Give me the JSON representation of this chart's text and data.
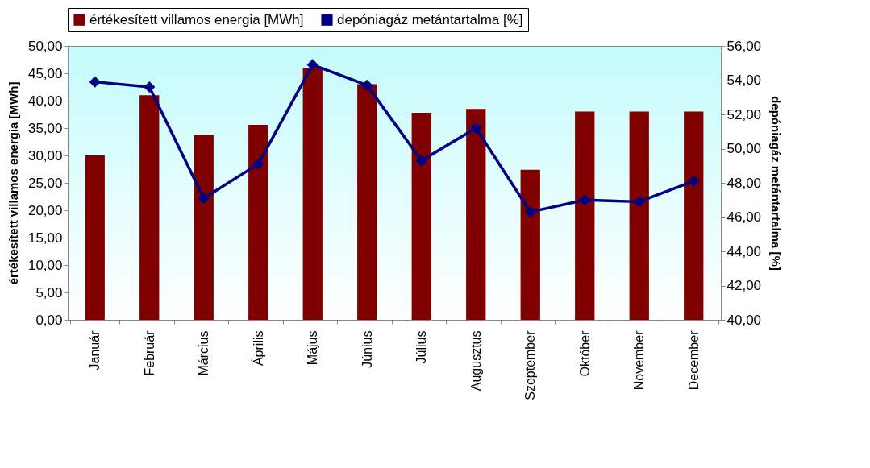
{
  "chart_data": {
    "type": "bar",
    "categories": [
      "Január",
      "Február",
      "Március",
      "Április",
      "Május",
      "Június",
      "Július",
      "Augusztus",
      "Szeptember",
      "Október",
      "November",
      "December"
    ],
    "series": [
      {
        "name": "értékesített villamos energia [MWh]",
        "color": "#800000",
        "values": [
          30.0,
          41.0,
          33.8,
          35.6,
          46.0,
          43.0,
          37.8,
          38.5,
          27.4,
          38.0,
          38.0,
          38.0
        ]
      },
      {
        "name": "depóniagáz metántartalma [%]",
        "type": "line",
        "axis": "y2",
        "color": "#000080",
        "values": [
          53.9,
          53.6,
          47.1,
          49.1,
          54.9,
          53.7,
          49.3,
          51.2,
          46.3,
          47.0,
          46.9,
          48.1
        ]
      }
    ],
    "ylabel": "értékesített villamos energia [MWh]",
    "y2label": "depóniagáz metántartalma [%]",
    "ylim": [
      0,
      50
    ],
    "yticks": [
      {
        "value": 0,
        "label": "0,00"
      },
      {
        "value": 5,
        "label": "5,00"
      },
      {
        "value": 10,
        "label": "10,00"
      },
      {
        "value": 15,
        "label": "15,00"
      },
      {
        "value": 20,
        "label": "20,00"
      },
      {
        "value": 25,
        "label": "25,00"
      },
      {
        "value": 30,
        "label": "30,00"
      },
      {
        "value": 35,
        "label": "35,00"
      },
      {
        "value": 40,
        "label": "40,00"
      },
      {
        "value": 45,
        "label": "45,00"
      },
      {
        "value": 50,
        "label": "50,00"
      }
    ],
    "y2lim": [
      40,
      56
    ],
    "y2ticks": [
      {
        "value": 40,
        "label": "40,00"
      },
      {
        "value": 42,
        "label": "42,00"
      },
      {
        "value": 44,
        "label": "44,00"
      },
      {
        "value": 46,
        "label": "46,00"
      },
      {
        "value": 48,
        "label": "48,00"
      },
      {
        "value": 50,
        "label": "50,00"
      },
      {
        "value": 52,
        "label": "52,00"
      },
      {
        "value": 54,
        "label": "54,00"
      },
      {
        "value": 56,
        "label": "56,00"
      }
    ],
    "marker": "diamond",
    "legend": "top",
    "grid": false
  }
}
